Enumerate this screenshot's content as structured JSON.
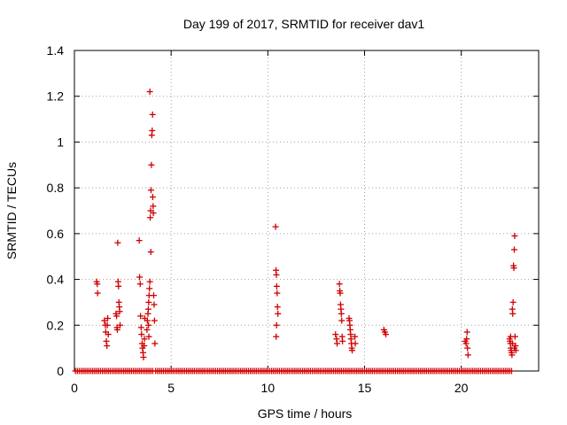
{
  "chart_data": {
    "type": "scatter",
    "title": "Day 199 of 2017, SRMTID for receiver dav1",
    "xlabel": "GPS time / hours",
    "ylabel": "SRMTID / TECUs",
    "xlim": [
      0,
      24
    ],
    "ylim": [
      0,
      1.4
    ],
    "grid": true,
    "marker": "+",
    "color": "#d00000",
    "x_ticks": [
      0,
      5,
      10,
      15,
      20
    ],
    "y_ticks": [
      0,
      0.2,
      0.4,
      0.6,
      0.8,
      1,
      1.2,
      1.4
    ],
    "x_tick_labels": [
      "0",
      "5",
      "10",
      "15",
      "20"
    ],
    "y_tick_labels": [
      "0",
      "0.2",
      "0.4",
      "0.6",
      "0.8",
      "1",
      "1.2",
      "1.4"
    ],
    "zero_baseline_segments": [
      [
        0.05,
        4.05
      ],
      [
        4.2,
        22.6
      ]
    ],
    "zero_baseline_step": 0.1,
    "series": [
      {
        "name": "SRMTID",
        "points": [
          [
            1.15,
            0.39
          ],
          [
            1.18,
            0.38
          ],
          [
            1.2,
            0.34
          ],
          [
            1.55,
            0.22
          ],
          [
            1.6,
            0.2
          ],
          [
            1.62,
            0.17
          ],
          [
            1.65,
            0.13
          ],
          [
            1.68,
            0.11
          ],
          [
            1.7,
            0.2
          ],
          [
            1.72,
            0.23
          ],
          [
            1.75,
            0.16
          ],
          [
            2.15,
            0.25
          ],
          [
            2.18,
            0.24
          ],
          [
            2.2,
            0.19
          ],
          [
            2.22,
            0.18
          ],
          [
            2.24,
            0.56
          ],
          [
            2.26,
            0.39
          ],
          [
            2.28,
            0.37
          ],
          [
            2.3,
            0.3
          ],
          [
            2.32,
            0.28
          ],
          [
            2.34,
            0.26
          ],
          [
            2.36,
            0.2
          ],
          [
            3.35,
            0.57
          ],
          [
            3.37,
            0.41
          ],
          [
            3.4,
            0.38
          ],
          [
            3.42,
            0.24
          ],
          [
            3.45,
            0.19
          ],
          [
            3.47,
            0.16
          ],
          [
            3.5,
            0.12
          ],
          [
            3.52,
            0.1
          ],
          [
            3.55,
            0.08
          ],
          [
            3.57,
            0.06
          ],
          [
            3.6,
            0.11
          ],
          [
            3.62,
            0.14
          ],
          [
            3.64,
            0.23
          ],
          [
            3.75,
            0.18
          ],
          [
            3.77,
            0.22
          ],
          [
            3.8,
            0.25
          ],
          [
            3.82,
            0.27
          ],
          [
            3.84,
            0.3
          ],
          [
            3.86,
            0.33
          ],
          [
            3.88,
            0.36
          ],
          [
            3.9,
            0.39
          ],
          [
            3.92,
            0.67
          ],
          [
            3.94,
            0.7
          ],
          [
            3.96,
            0.79
          ],
          [
            3.98,
            0.9
          ],
          [
            4.0,
            1.03
          ],
          [
            4.02,
            1.05
          ],
          [
            4.04,
            1.12
          ],
          [
            3.9,
            1.22
          ],
          [
            3.95,
            0.52
          ],
          [
            4.05,
            0.76
          ],
          [
            4.07,
            0.72
          ],
          [
            4.08,
            0.69
          ],
          [
            4.1,
            0.33
          ],
          [
            4.12,
            0.29
          ],
          [
            4.14,
            0.22
          ],
          [
            4.16,
            0.12
          ],
          [
            3.85,
            0.15
          ],
          [
            3.83,
            0.2
          ],
          [
            10.4,
            0.63
          ],
          [
            10.42,
            0.44
          ],
          [
            10.44,
            0.42
          ],
          [
            10.46,
            0.37
          ],
          [
            10.48,
            0.34
          ],
          [
            10.5,
            0.28
          ],
          [
            10.52,
            0.25
          ],
          [
            10.45,
            0.2
          ],
          [
            10.43,
            0.15
          ],
          [
            13.5,
            0.16
          ],
          [
            13.55,
            0.14
          ],
          [
            13.58,
            0.12
          ],
          [
            13.7,
            0.38
          ],
          [
            13.72,
            0.35
          ],
          [
            13.74,
            0.34
          ],
          [
            13.76,
            0.29
          ],
          [
            13.78,
            0.27
          ],
          [
            13.8,
            0.25
          ],
          [
            13.82,
            0.22
          ],
          [
            13.84,
            0.15
          ],
          [
            13.86,
            0.13
          ],
          [
            14.2,
            0.23
          ],
          [
            14.22,
            0.22
          ],
          [
            14.24,
            0.2
          ],
          [
            14.26,
            0.18
          ],
          [
            14.28,
            0.16
          ],
          [
            14.3,
            0.14
          ],
          [
            14.32,
            0.12
          ],
          [
            14.34,
            0.1
          ],
          [
            14.36,
            0.09
          ],
          [
            14.5,
            0.15
          ],
          [
            14.52,
            0.12
          ],
          [
            16.0,
            0.18
          ],
          [
            16.05,
            0.17
          ],
          [
            16.1,
            0.16
          ],
          [
            20.2,
            0.13
          ],
          [
            20.25,
            0.12
          ],
          [
            20.3,
            0.17
          ],
          [
            20.32,
            0.1
          ],
          [
            20.35,
            0.07
          ],
          [
            20.28,
            0.14
          ],
          [
            22.5,
            0.14
          ],
          [
            22.52,
            0.13
          ],
          [
            22.54,
            0.12
          ],
          [
            22.56,
            0.1
          ],
          [
            22.58,
            0.09
          ],
          [
            22.6,
            0.08
          ],
          [
            22.62,
            0.07
          ],
          [
            22.64,
            0.27
          ],
          [
            22.66,
            0.25
          ],
          [
            22.68,
            0.3
          ],
          [
            22.7,
            0.46
          ],
          [
            22.72,
            0.45
          ],
          [
            22.74,
            0.53
          ],
          [
            22.76,
            0.59
          ],
          [
            22.78,
            0.15
          ],
          [
            22.8,
            0.11
          ],
          [
            22.82,
            0.09
          ],
          [
            22.55,
            0.15
          ],
          [
            22.65,
            0.12
          ],
          [
            22.75,
            0.1
          ]
        ]
      }
    ]
  }
}
